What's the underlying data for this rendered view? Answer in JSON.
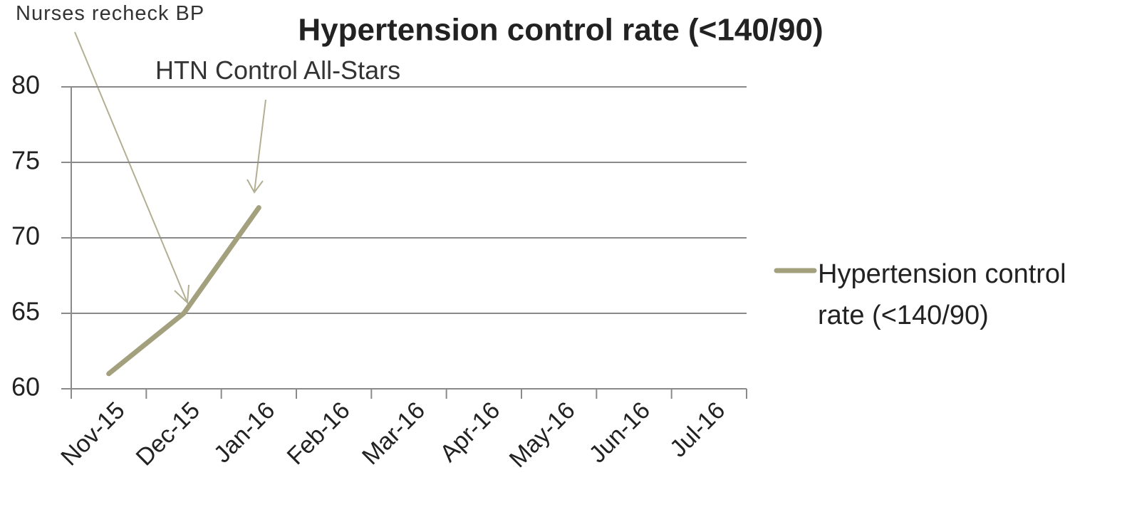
{
  "chart_data": {
    "type": "line",
    "title": "Hypertension control rate (<140/90)",
    "categories": [
      "Nov-15",
      "Dec-15",
      "Jan-16",
      "Feb-16",
      "Mar-16",
      "Apr-16",
      "May-16",
      "Jun-16",
      "Jul-16"
    ],
    "series": [
      {
        "name": "Hypertension control rate (<140/90)",
        "color": "#a3a07e",
        "values": [
          61,
          65,
          72,
          null,
          null,
          null,
          null,
          null,
          null
        ]
      }
    ],
    "ylim": [
      60,
      80
    ],
    "yticks": [
      60,
      65,
      70,
      75,
      80
    ],
    "grid": true,
    "legend": "right",
    "annotations": [
      "Nurses recheck BP",
      "HTN Control All-Stars"
    ]
  }
}
